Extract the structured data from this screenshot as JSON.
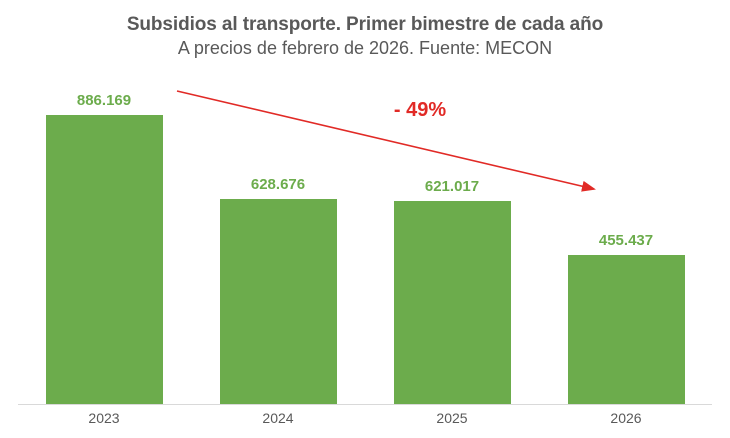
{
  "chart_data": {
    "type": "bar",
    "title": "Subsidios al transporte. Primer bimestre de cada año",
    "subtitle": "A precios de febrero de 2026. Fuente: MECON",
    "categories": [
      "2023",
      "2024",
      "2025",
      "2026"
    ],
    "values": [
      886169,
      628676,
      621017,
      455437
    ],
    "value_labels": [
      "886.169",
      "628.676",
      "621.017",
      "455.437"
    ],
    "annotation": "- 49%",
    "xlabel": "",
    "ylabel": "",
    "ylim": [
      0,
      906000
    ],
    "grid": false,
    "legend": "none",
    "bar_color": "#6cac4c",
    "value_label_color": "#6cac4c",
    "annotation_color": "#e12a26",
    "arrow_color": "#e12a26",
    "text_color": "#595959",
    "axis_line_color": "#d9d9d9"
  }
}
